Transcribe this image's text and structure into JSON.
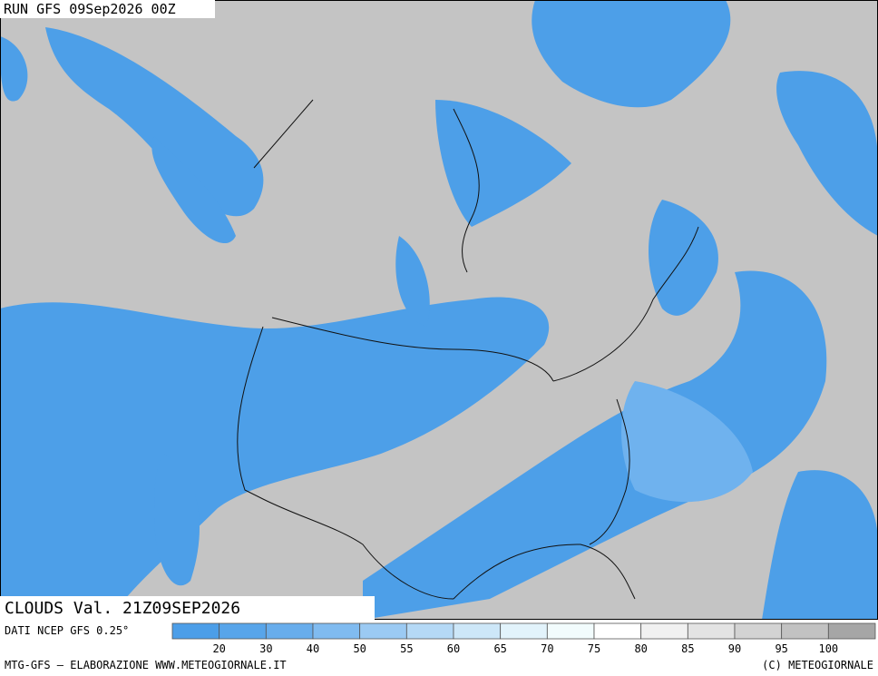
{
  "header": {
    "title": "RUN GFS 09Sep2026 00Z"
  },
  "map": {
    "label": "CLOUDS Val. 21Z09SEP2026"
  },
  "legend": {
    "source": "DATI NCEP GFS 0.25°",
    "labels": [
      20,
      30,
      40,
      50,
      55,
      60,
      65,
      70,
      75,
      80,
      85,
      90,
      95,
      100
    ],
    "colors": [
      "#4c9ee8",
      "#58a5ea",
      "#68adec",
      "#80bbf0",
      "#9bcaf3",
      "#b5d9f6",
      "#cde7f8",
      "#e2f3fb",
      "#f2fcfd",
      "#ffffff",
      "#f1f1f1",
      "#e3e3e3",
      "#d3d3d3",
      "#c2c2c2",
      "#a6a6a6"
    ]
  },
  "footer": {
    "left": "MTG-GFS — ELABORAZIONE WWW.METEOGIORNALE.IT",
    "right": "(C) METEOGIORNALE"
  }
}
